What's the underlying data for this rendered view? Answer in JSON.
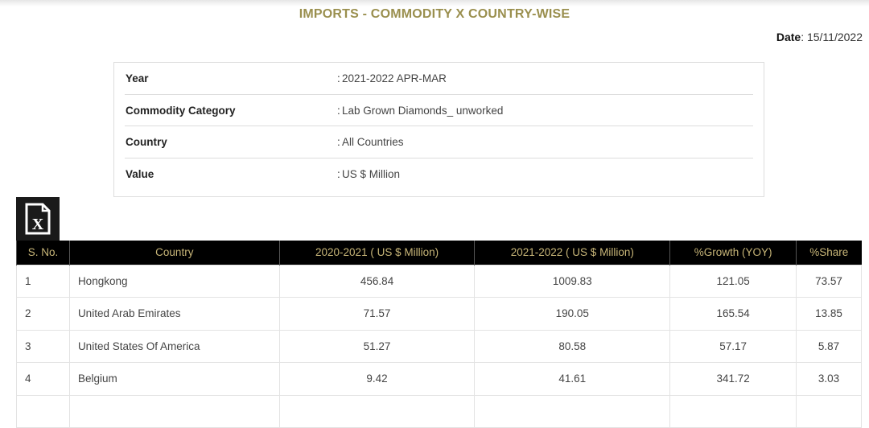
{
  "header": {
    "title": "IMPORTS - COMMODITY X COUNTRY-WISE",
    "date_label": "Date",
    "date_value": "15/11/2022"
  },
  "info": [
    {
      "label": "Year",
      "value": "2021-2022 APR-MAR"
    },
    {
      "label": "Commodity Category",
      "value": "Lab Grown Diamonds_ unworked"
    },
    {
      "label": "Country",
      "value": "All Countries"
    },
    {
      "label": "Value",
      "value": "US $ Million"
    }
  ],
  "export_icon": "excel-file-icon",
  "table": {
    "columns": [
      "S. No.",
      "Country",
      "2020-2021 ( US $ Million)",
      "2021-2022 ( US $ Million)",
      "%Growth (YOY)",
      "%Share"
    ],
    "rows": [
      [
        "1",
        "Hongkong",
        "456.84",
        "1009.83",
        "121.05",
        "73.57"
      ],
      [
        "2",
        "United Arab Emirates",
        "71.57",
        "190.05",
        "165.54",
        "13.85"
      ],
      [
        "3",
        "United States Of America",
        "51.27",
        "80.58",
        "57.17",
        "5.87"
      ],
      [
        "4",
        "Belgium",
        "9.42",
        "41.61",
        "341.72",
        "3.03"
      ],
      [
        "",
        "",
        "",
        "",
        "",
        ""
      ]
    ]
  }
}
